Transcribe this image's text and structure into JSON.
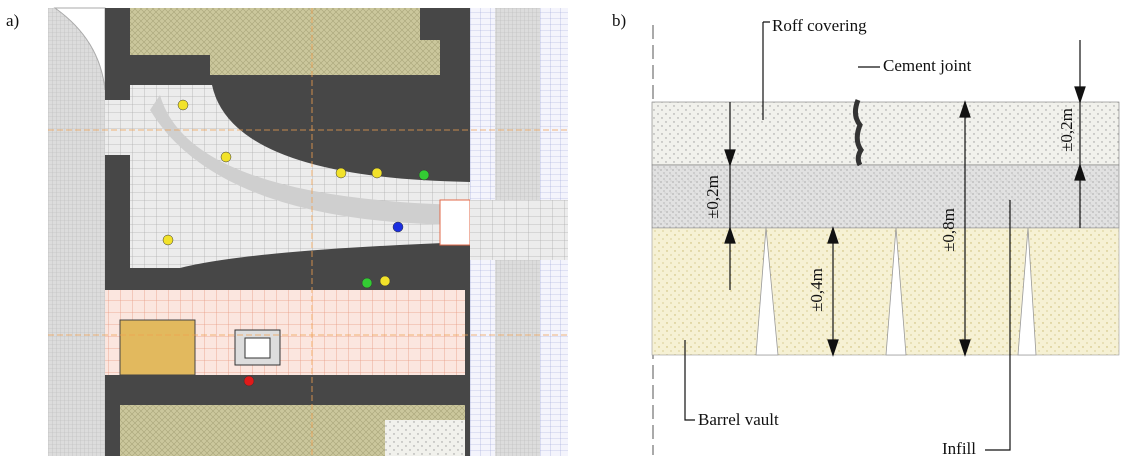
{
  "panel_a": {
    "label": "a)"
  },
  "panel_b": {
    "label": "b)",
    "callouts": {
      "roof": "Roff covering",
      "joint": "Cement joint",
      "vault": "Barrel vault",
      "infill": "Infill"
    },
    "dimensions": {
      "top_right": "±0,2m",
      "middle": "±0,2m",
      "total": "±0,8m",
      "vault": "±0,4m"
    }
  }
}
